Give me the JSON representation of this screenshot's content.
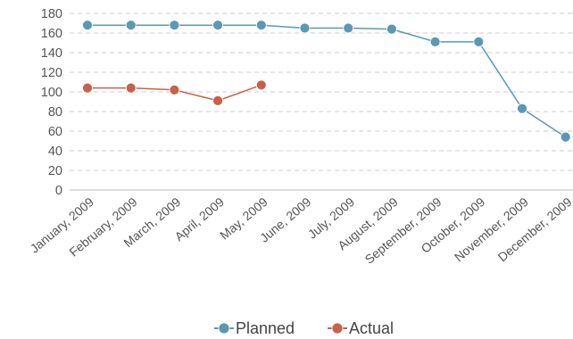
{
  "chart_data": {
    "type": "line",
    "categories": [
      "January, 2009",
      "February, 2009",
      "March, 2009",
      "April, 2009",
      "May, 2009",
      "June, 2009",
      "July, 2009",
      "August, 2009",
      "September, 2009",
      "October, 2009",
      "November, 2009",
      "December, 2009"
    ],
    "series": [
      {
        "name": "Planned",
        "color": "#5b98b3",
        "values": [
          168,
          168,
          168,
          168,
          168,
          165,
          165,
          164,
          151,
          151,
          83,
          54
        ]
      },
      {
        "name": "Actual",
        "color": "#c8604a",
        "values": [
          104,
          104,
          102,
          91,
          107,
          null,
          null,
          null,
          null,
          null,
          null,
          null
        ]
      }
    ],
    "ylim": [
      0,
      180
    ],
    "yticks": [
      0,
      20,
      40,
      60,
      80,
      100,
      120,
      140,
      160,
      180
    ],
    "grid": true,
    "legend_position": "bottom-center",
    "title": "",
    "xlabel": "",
    "ylabel": ""
  }
}
